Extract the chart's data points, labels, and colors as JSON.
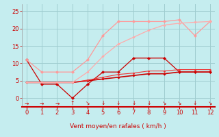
{
  "xlabel": "Vent moyen/en rafales ( km/h )",
  "xlim": [
    -0.3,
    12.3
  ],
  "ylim": [
    -2.5,
    27
  ],
  "yticks": [
    0,
    5,
    10,
    15,
    20,
    25
  ],
  "xticks": [
    0,
    1,
    2,
    3,
    4,
    5,
    6,
    7,
    8,
    9,
    10,
    11,
    12
  ],
  "bg_color": "#c5edef",
  "grid_color": "#9fcdd0",
  "series": [
    {
      "x": [
        0,
        1,
        2,
        3,
        4,
        5,
        6,
        7,
        8,
        9,
        10,
        11,
        12
      ],
      "y": [
        11,
        4,
        4,
        0,
        4,
        7.5,
        7.5,
        11.5,
        11.5,
        11.5,
        7.5,
        7.5,
        7.5
      ],
      "color": "#cc0000",
      "linewidth": 0.9,
      "marker": "D",
      "markersize": 2.2
    },
    {
      "x": [
        0,
        1,
        2,
        3,
        4,
        5,
        6,
        7,
        8,
        9,
        10,
        11,
        12
      ],
      "y": [
        4.5,
        4.5,
        4.5,
        4.5,
        5,
        5.5,
        6,
        6.5,
        7,
        7,
        7.5,
        7.5,
        7.5
      ],
      "color": "#cc0000",
      "linewidth": 1.2,
      "marker": "D",
      "markersize": 1.8
    },
    {
      "x": [
        0,
        1,
        2,
        3,
        4,
        5,
        6,
        7,
        8,
        9,
        10,
        11,
        12
      ],
      "y": [
        4.5,
        4.5,
        4.5,
        4.5,
        5.2,
        6.0,
        6.8,
        7.2,
        7.8,
        7.8,
        8.2,
        8.2,
        8.2
      ],
      "color": "#ee3333",
      "linewidth": 0.8,
      "marker": "D",
      "markersize": 1.5
    },
    {
      "x": [
        0,
        1,
        2,
        3,
        4,
        5,
        6,
        7,
        8,
        9,
        10,
        11,
        12
      ],
      "y": [
        11,
        7.5,
        7.5,
        7.5,
        11,
        18,
        22,
        22,
        22,
        22,
        22.5,
        18,
        22
      ],
      "color": "#ff9999",
      "linewidth": 0.9,
      "marker": "D",
      "markersize": 2.2
    },
    {
      "x": [
        0,
        1,
        2,
        3,
        4,
        5,
        6,
        7,
        8,
        9,
        10,
        11,
        12
      ],
      "y": [
        4.5,
        4.5,
        4.5,
        4.5,
        7.5,
        12,
        15.5,
        17.5,
        19.5,
        21,
        21.5,
        21.8,
        22
      ],
      "color": "#ffaaaa",
      "linewidth": 0.9,
      "marker": "D",
      "markersize": 1.8
    }
  ],
  "wind_symbols": [
    "→",
    "→",
    "→",
    "↑",
    "↘",
    "↓",
    "↓",
    "↓",
    "↓",
    "↘",
    "↘",
    "↓",
    "↘"
  ]
}
